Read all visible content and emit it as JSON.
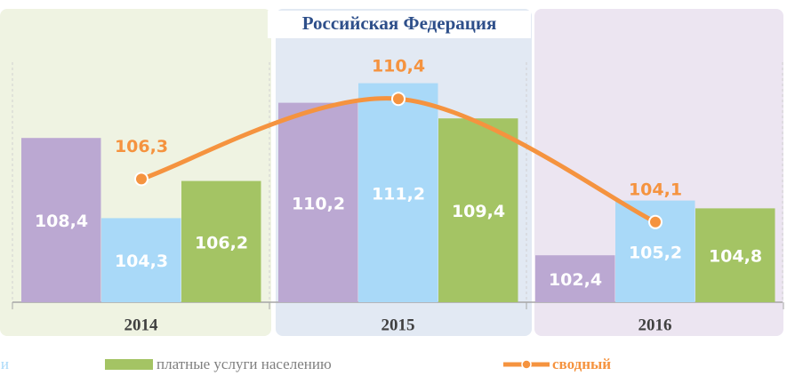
{
  "chart_data": {
    "type": "bar",
    "title": "Российская Федерация",
    "categories": [
      "2014",
      "2015",
      "2016"
    ],
    "ylim": [
      100,
      113.5
    ],
    "series": [
      {
        "color": "#bba8d2",
        "values": [
          108.4,
          110.2,
          102.4
        ],
        "value_labels": [
          "108,4",
          "110,2",
          "102,4"
        ]
      },
      {
        "name": "и",
        "color": "#a9d9f8",
        "values": [
          104.3,
          111.2,
          105.2
        ],
        "value_labels": [
          "104,3",
          "111,2",
          "105,2"
        ]
      },
      {
        "name": "платные услуги населению",
        "color": "#a4c464",
        "values": [
          106.2,
          109.4,
          104.8
        ],
        "value_labels": [
          "106,2",
          "109,4",
          "104,8"
        ]
      },
      {
        "name": "сводный",
        "type": "line",
        "color": "#f5933f",
        "values": [
          106.3,
          110.4,
          104.1
        ],
        "value_labels": [
          "106,3",
          "110,4",
          "104,1"
        ]
      }
    ]
  }
}
